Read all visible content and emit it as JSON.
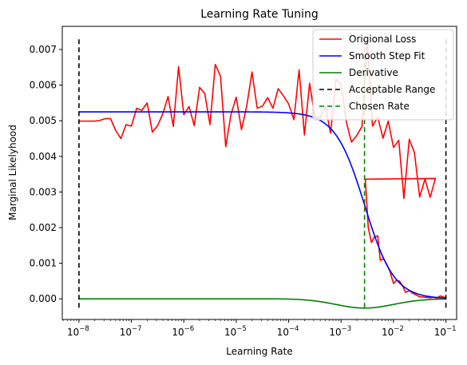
{
  "chart_data": {
    "type": "line",
    "title": "Learning Rate Tuning",
    "xlabel": "Learning Rate",
    "ylabel": "Marginal Likelyhood",
    "xscale": "log",
    "xlim": [
      4.8e-09,
      0.16
    ],
    "ylim": [
      -0.00058,
      0.00765
    ],
    "x_ticks": [
      1e-08,
      1e-07,
      1e-06,
      1e-05,
      0.0001,
      0.001,
      0.01,
      0.1
    ],
    "x_tick_labels": [
      {
        "base": "10",
        "exp": "−8"
      },
      {
        "base": "10",
        "exp": "−7"
      },
      {
        "base": "10",
        "exp": "−6"
      },
      {
        "base": "10",
        "exp": "−5"
      },
      {
        "base": "10",
        "exp": "−4"
      },
      {
        "base": "10",
        "exp": "−3"
      },
      {
        "base": "10",
        "exp": "−2"
      },
      {
        "base": "10",
        "exp": "−1"
      }
    ],
    "y_ticks": [
      0.0,
      0.001,
      0.002,
      0.003,
      0.004,
      0.005,
      0.006,
      0.007
    ],
    "y_tick_labels": [
      "0.000",
      "0.001",
      "0.002",
      "0.003",
      "0.004",
      "0.005",
      "0.006",
      "0.007"
    ],
    "grid": false,
    "legend_position": "top-right",
    "series": [
      {
        "name": "Origional Loss",
        "color": "#ff0000",
        "style": "solid",
        "x": [
          1e-08,
          1.3e-08,
          1.6e-08,
          2e-08,
          2.5e-08,
          3.2e-08,
          4e-08,
          5e-08,
          6.3e-08,
          7.9e-08,
          1e-07,
          1.26e-07,
          1.58e-07,
          2e-07,
          2.51e-07,
          3.16e-07,
          3.98e-07,
          5.01e-07,
          6.31e-07,
          7.94e-07,
          1e-06,
          1.26e-06,
          1.58e-06,
          2e-06,
          2.51e-06,
          3.16e-06,
          3.98e-06,
          5.01e-06,
          6.31e-06,
          7.94e-06,
          1e-05,
          1.26e-05,
          1.58e-05,
          2e-05,
          2.51e-05,
          3.16e-05,
          3.98e-05,
          5.01e-05,
          6.31e-05,
          7.94e-05,
          0.0001,
          0.000126,
          0.000158,
          0.0002,
          0.000251,
          0.000316,
          0.000398,
          0.000501,
          0.000631,
          0.000794,
          0.001,
          0.00126,
          0.00158,
          0.002,
          0.00251,
          0.00316,
          0.00398,
          0.00501,
          0.00631,
          0.00794,
          0.01,
          0.0126,
          0.0158,
          0.02,
          0.0251,
          0.0316,
          0.0398,
          0.0501,
          0.0631,
          0.0794,
          0.1
        ],
        "y": [
          0.00499,
          0.00499,
          0.00499,
          0.00499,
          0.00501,
          0.00506,
          0.00506,
          0.00473,
          0.0045,
          0.00489,
          0.00485,
          0.00535,
          0.00529,
          0.0055,
          0.00468,
          0.00486,
          0.0052,
          0.00568,
          0.00484,
          0.00652,
          0.00517,
          0.0054,
          0.00486,
          0.00594,
          0.00576,
          0.00489,
          0.00658,
          0.00625,
          0.00427,
          0.00518,
          0.00566,
          0.00475,
          0.0054,
          0.00637,
          0.00535,
          0.00541,
          0.00565,
          0.00535,
          0.0059,
          0.0057,
          0.00547,
          0.00503,
          0.00643,
          0.0046,
          0.00605,
          0.0051,
          0.00508,
          0.00541,
          0.00465,
          0.00617,
          0.00602,
          0.00497,
          0.0044,
          0.00459,
          0.00484,
          0.00725,
          0.00485,
          0.0051,
          0.00451,
          0.00499,
          0.00425,
          0.00445,
          0.00282,
          0.00448,
          0.0041,
          0.00286,
          0.00336,
          0.00285,
          0.00338,
          0.00175,
          0.00125
        ],
        "x_tail": [
          0.0029,
          0.0033,
          0.0038,
          0.0043,
          0.005,
          0.0056,
          0.0065,
          0.0075,
          0.0085,
          0.01,
          0.0115,
          0.013,
          0.015,
          0.017,
          0.02,
          0.023,
          0.027,
          0.031,
          0.036,
          0.042,
          0.05,
          0.058,
          0.067,
          0.078,
          0.09,
          0.1
        ],
        "y_tail": [
          0.00336,
          0.002,
          0.00158,
          0.00173,
          0.00177,
          0.00108,
          0.00113,
          0.00095,
          0.00078,
          0.00043,
          0.00052,
          0.0005,
          0.00036,
          0.00018,
          0.00023,
          0.00016,
          0.00011,
          6e-05,
          5e-05,
          4e-05,
          3e-05,
          4e-05,
          2e-05,
          8e-05,
          5e-05,
          3e-05
        ]
      },
      {
        "name": "Smooth Step Fit",
        "color": "#0000ff",
        "style": "solid",
        "function": {
          "kind": "logistic_log10",
          "upper": 0.00525,
          "lower": 0.0,
          "center_log10": -2.55,
          "width": 0.28
        }
      },
      {
        "name": "Derivative",
        "color": "#008000",
        "style": "solid",
        "function": {
          "kind": "gaussian_log10",
          "amplitude": -0.00026,
          "center_log10": -2.55,
          "sigma": 0.55
        }
      },
      {
        "name": "Acceptable Range",
        "color": "#000000",
        "style": "dashed",
        "vlines": [
          1e-08,
          0.1
        ],
        "yrange": [
          -0.00025,
          0.0073
        ]
      },
      {
        "name": "Chosen Rate",
        "color": "#008000",
        "style": "dashed",
        "vlines": [
          0.0028
        ],
        "yrange": [
          -0.00025,
          0.0073
        ]
      }
    ]
  }
}
